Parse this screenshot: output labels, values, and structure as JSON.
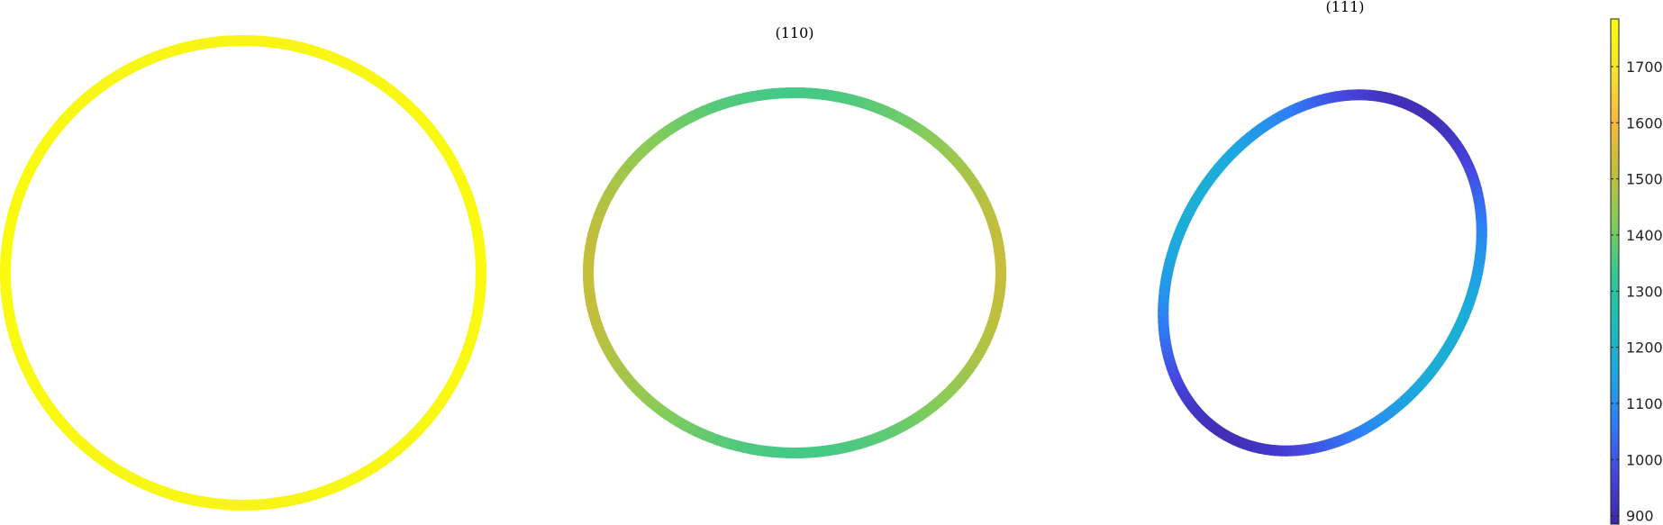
{
  "chart_data": [
    {
      "type": "line",
      "title": "",
      "series": [
        {
          "ring_shape": "circle",
          "value_range": [
            1760,
            1780
          ]
        }
      ]
    },
    {
      "type": "line",
      "title": "(110)",
      "series": [
        {
          "ring_shape": "ellipse-horizontal",
          "value_range": [
            1350,
            1520
          ]
        }
      ]
    },
    {
      "type": "line",
      "title": "(111)",
      "series": [
        {
          "ring_shape": "ellipse-tilted",
          "value_range": [
            910,
            1180
          ]
        }
      ]
    }
  ],
  "colorbar": {
    "ticks": [
      "900",
      "1000",
      "1100",
      "1200",
      "1300",
      "1400",
      "1500",
      "1600",
      "1700"
    ],
    "tick_values": [
      900,
      1000,
      1100,
      1200,
      1300,
      1400,
      1500,
      1600,
      1700
    ],
    "range": [
      885,
      1785
    ],
    "colormap": "parula",
    "colormap_stops": [
      "#3E26A8",
      "#4745E0",
      "#2E7EF7",
      "#1CA8DF",
      "#1BBEB8",
      "#37C88F",
      "#86CC58",
      "#C3BE3C",
      "#F8BA3D",
      "#F5E62A",
      "#F9FB0E"
    ]
  }
}
